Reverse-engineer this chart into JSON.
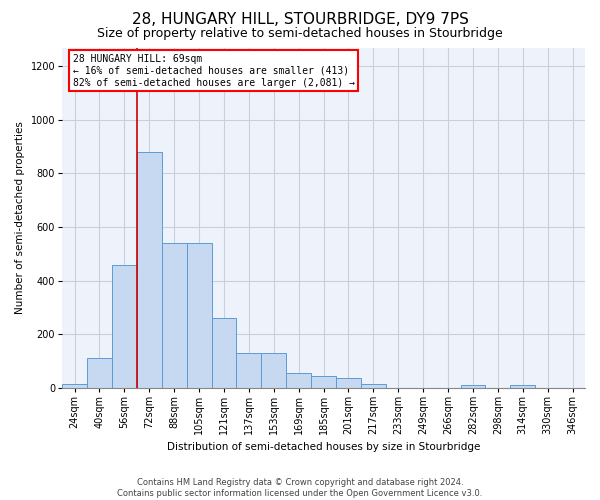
{
  "title": "28, HUNGARY HILL, STOURBRIDGE, DY9 7PS",
  "subtitle": "Size of property relative to semi-detached houses in Stourbridge",
  "xlabel": "Distribution of semi-detached houses by size in Stourbridge",
  "ylabel": "Number of semi-detached properties",
  "footer1": "Contains HM Land Registry data © Crown copyright and database right 2024.",
  "footer2": "Contains public sector information licensed under the Open Government Licence v3.0.",
  "categories": [
    "24sqm",
    "40sqm",
    "56sqm",
    "72sqm",
    "88sqm",
    "105sqm",
    "121sqm",
    "137sqm",
    "153sqm",
    "169sqm",
    "185sqm",
    "201sqm",
    "217sqm",
    "233sqm",
    "249sqm",
    "266sqm",
    "282sqm",
    "298sqm",
    "314sqm",
    "330sqm",
    "346sqm"
  ],
  "values": [
    15,
    110,
    460,
    880,
    540,
    540,
    260,
    130,
    130,
    55,
    45,
    35,
    15,
    0,
    0,
    0,
    12,
    0,
    12,
    0,
    0
  ],
  "bar_color": "#c6d9f0",
  "bar_edge_color": "#5b9bd5",
  "marker_label": "28 HUNGARY HILL: 69sqm",
  "pct_smaller": "16%",
  "n_smaller": 413,
  "pct_larger": "82%",
  "n_larger": 2081,
  "annotation_box_color": "#ffffff",
  "annotation_box_edge": "#ff0000",
  "marker_line_color": "#cc0000",
  "ylim": [
    0,
    1270
  ],
  "yticks": [
    0,
    200,
    400,
    600,
    800,
    1000,
    1200
  ],
  "grid_color": "#c8d0e0",
  "bg_color": "#eef2fb",
  "title_fontsize": 11,
  "subtitle_fontsize": 9,
  "axis_fontsize": 7.5,
  "tick_fontsize": 7,
  "footer_fontsize": 6,
  "bar_width": 1.0,
  "marker_bar_index": 3
}
